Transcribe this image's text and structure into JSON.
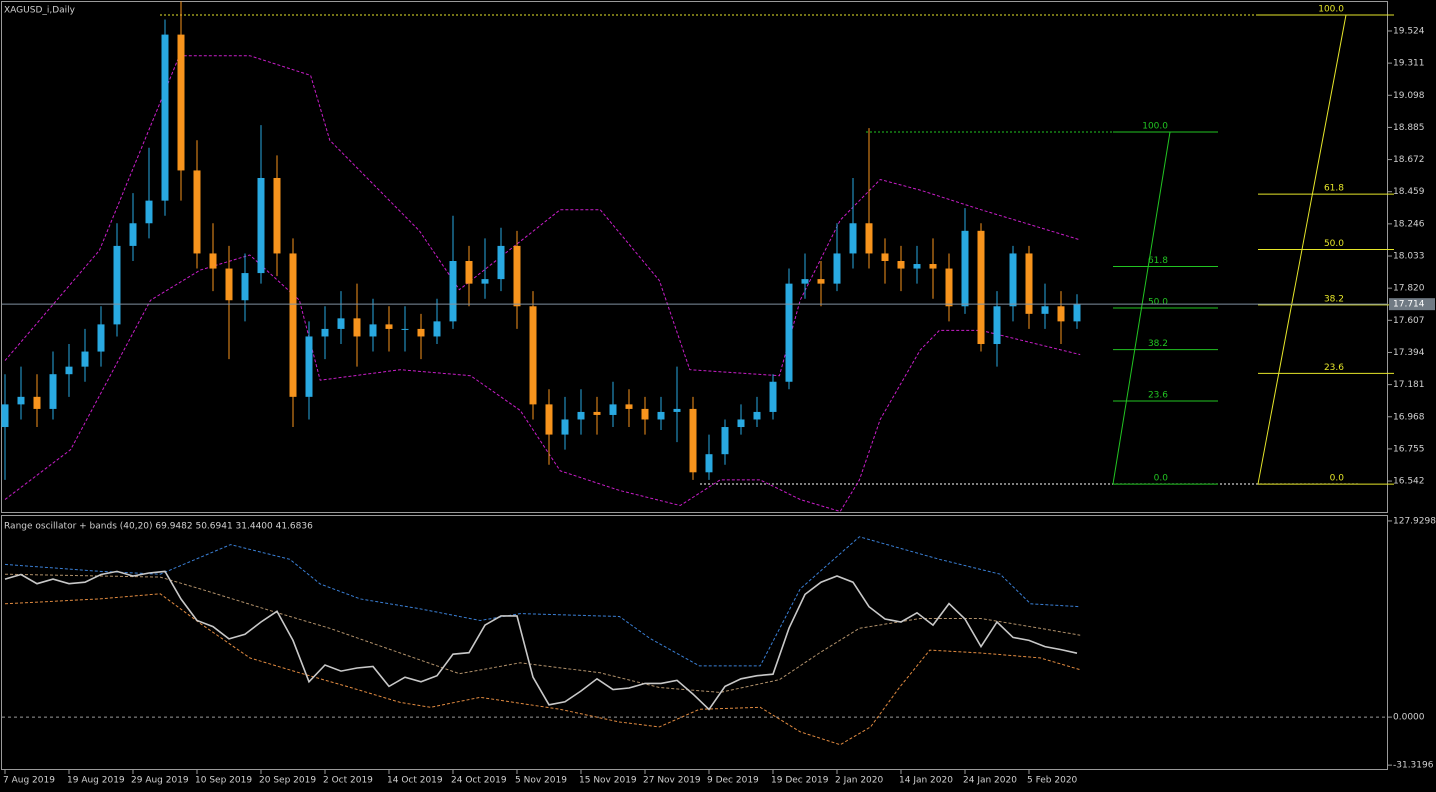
{
  "chart_data": [
    {
      "type": "candlestick",
      "title": "XAGUSD_i,Daily",
      "up_color": "#29a9e1",
      "down_color": "#f7941d",
      "open": [
        16.9,
        17.05,
        17.1,
        17.02,
        17.25,
        17.3,
        17.4,
        17.58,
        18.1,
        18.25,
        18.4,
        19.5,
        18.6,
        18.05,
        17.95,
        17.74,
        17.92,
        18.55,
        18.05,
        17.1,
        17.5,
        17.55,
        17.62,
        17.5,
        17.58,
        17.55,
        17.55,
        17.5,
        17.6,
        18.0,
        17.85,
        17.88,
        18.1,
        17.7,
        17.05,
        16.85,
        16.95,
        17.0,
        16.98,
        17.05,
        17.02,
        16.95,
        17.0,
        17.02,
        16.6,
        16.72,
        16.9,
        16.95,
        17.0,
        17.2,
        17.85,
        17.88,
        17.85,
        18.05,
        18.25,
        18.05,
        18.0,
        17.95,
        17.98,
        17.95,
        17.7,
        18.2,
        17.45,
        17.7,
        18.05,
        17.65,
        17.7,
        17.6
      ],
      "high": [
        17.25,
        17.3,
        17.25,
        17.4,
        17.45,
        17.55,
        17.7,
        18.25,
        18.45,
        18.75,
        19.6,
        19.72,
        18.8,
        18.25,
        18.1,
        18.05,
        18.9,
        18.7,
        18.15,
        17.6,
        17.7,
        17.8,
        17.85,
        17.75,
        17.7,
        17.7,
        17.65,
        17.75,
        18.3,
        18.1,
        18.15,
        18.22,
        18.2,
        17.8,
        17.15,
        17.1,
        17.15,
        17.1,
        17.2,
        17.15,
        17.1,
        17.1,
        17.3,
        17.1,
        16.85,
        16.95,
        17.05,
        17.1,
        17.25,
        17.95,
        18.05,
        18.0,
        18.25,
        18.55,
        18.88,
        18.15,
        18.1,
        18.1,
        18.15,
        18.05,
        18.35,
        18.25,
        17.8,
        18.1,
        18.1,
        17.85,
        17.8,
        17.78
      ],
      "low": [
        16.55,
        16.95,
        16.9,
        16.95,
        17.1,
        17.2,
        17.3,
        17.5,
        18.0,
        18.15,
        18.3,
        18.4,
        17.95,
        17.8,
        17.35,
        17.6,
        17.85,
        17.9,
        16.9,
        16.95,
        17.35,
        17.45,
        17.3,
        17.4,
        17.4,
        17.4,
        17.35,
        17.45,
        17.55,
        17.7,
        17.75,
        17.8,
        17.55,
        16.95,
        16.65,
        16.75,
        16.85,
        16.85,
        16.9,
        16.9,
        16.85,
        16.88,
        16.8,
        16.55,
        16.55,
        16.65,
        16.85,
        16.9,
        16.95,
        17.15,
        17.75,
        17.7,
        17.8,
        17.95,
        17.95,
        17.85,
        17.8,
        17.85,
        17.75,
        17.6,
        17.65,
        17.4,
        17.3,
        17.6,
        17.55,
        17.55,
        17.45,
        17.55
      ],
      "close": [
        17.05,
        17.1,
        17.02,
        17.25,
        17.3,
        17.4,
        17.58,
        18.1,
        18.25,
        18.4,
        19.5,
        18.6,
        18.05,
        17.95,
        17.74,
        17.92,
        18.55,
        18.05,
        17.1,
        17.5,
        17.55,
        17.62,
        17.5,
        17.58,
        17.55,
        17.55,
        17.5,
        17.6,
        18.0,
        17.85,
        17.88,
        18.1,
        17.7,
        17.05,
        16.85,
        16.95,
        17.0,
        16.98,
        17.05,
        17.02,
        16.95,
        17.0,
        17.02,
        16.6,
        16.72,
        16.9,
        16.95,
        17.0,
        17.2,
        17.85,
        17.88,
        17.85,
        18.05,
        18.25,
        18.05,
        18.0,
        17.95,
        17.98,
        17.95,
        17.7,
        18.2,
        17.45,
        17.7,
        18.05,
        17.65,
        17.7,
        17.6,
        17.714
      ],
      "last_price": 17.714,
      "ylim": [
        16.337,
        19.716
      ],
      "yticks": [
        19.524,
        19.311,
        19.098,
        18.885,
        18.672,
        18.459,
        18.246,
        18.033,
        {
          "value": 17.82,
          "label": "17.820"
        },
        17.607,
        17.394,
        17.181,
        16.968,
        16.755,
        16.542
      ],
      "overlays": [
        {
          "color": "#c81ec8",
          "x": [
            0,
            5.9,
            10.9,
            15.3,
            19.1,
            20.3,
            25.9,
            28.4,
            34.7,
            37.2,
            40.9,
            42.8,
            48.4,
            49.7,
            52.2,
            54.7,
            57.2,
            61.0,
            67.2
          ],
          "values": [
            17.34,
            18.07,
            19.36,
            19.36,
            19.23,
            18.8,
            18.2,
            17.81,
            18.34,
            18.34,
            17.87,
            17.28,
            17.24,
            17.74,
            18.27,
            18.54,
            18.47,
            18.34,
            18.14
          ]
        },
        {
          "color": "#c81ec8",
          "x": [
            0,
            4.1,
            9.1,
            12.2,
            15.3,
            18.4,
            19.7,
            24.7,
            29.1,
            32.2,
            34.7,
            38.4,
            42.2,
            44.7,
            47.2,
            49.7,
            52.2,
            53.4,
            54.7,
            57.2,
            58.4,
            61.0,
            67.2
          ],
          "values": [
            16.42,
            16.75,
            17.74,
            17.94,
            18.04,
            17.74,
            17.21,
            17.28,
            17.24,
            17.01,
            16.61,
            16.48,
            16.38,
            16.55,
            16.55,
            16.42,
            16.34,
            16.55,
            16.95,
            17.41,
            17.54,
            17.54,
            17.38
          ]
        }
      ],
      "fibs": [
        {
          "color": "#22c322",
          "high": 18.855,
          "low": 16.522,
          "levels": [
            {
              "value": 100,
              "label": "100.0"
            },
            61.8,
            {
              "value": 50,
              "label": "50.0"
            },
            38.2,
            23.6,
            {
              "value": 0,
              "label": "0.0"
            }
          ]
        },
        {
          "color": "#e6e62a",
          "high": 19.63,
          "low": 16.522,
          "levels": [
            {
              "value": 100,
              "label": "100.0"
            },
            61.8,
            {
              "value": 50,
              "label": "50.0"
            },
            38.2,
            23.6,
            {
              "value": 0,
              "label": "0.0"
            }
          ]
        }
      ]
    },
    {
      "type": "line",
      "title": "Range oscillator + bands (40,20) 69.9482 50.6941 31.4400 41.6836",
      "color": "#c8c8c8",
      "values": [
        90,
        93,
        87,
        90,
        87,
        88,
        93,
        95,
        92,
        94,
        95,
        77,
        63,
        59,
        51,
        54,
        62,
        69,
        50,
        23,
        34,
        30,
        32,
        33,
        20,
        26,
        23,
        27,
        41,
        42,
        60,
        66,
        66,
        26,
        8,
        10,
        17,
        25,
        18,
        19,
        22,
        22,
        24,
        15,
        5,
        20,
        25,
        27,
        28,
        58,
        80,
        88,
        92,
        88,
        72,
        64,
        62,
        68,
        60,
        74,
        64,
        46,
        62,
        52,
        50,
        46,
        44,
        41.68
      ],
      "ylim": [
        -34.5,
        131.8
      ],
      "yticks": [
        127.9298,
        {
          "value": 0,
          "label": "0.0000"
        },
        -31.3196
      ],
      "bands": [
        {
          "color": "#3a7fd5",
          "x": [
            0,
            5.9,
            9.7,
            14.1,
            17.8,
            19.7,
            22.2,
            25.9,
            29.7,
            32.2,
            38.4,
            40.3,
            43.4,
            47.2,
            49.7,
            53.4,
            58.4,
            62.2,
            64.1,
            67.2
          ],
          "values": [
            99.6,
            95.1,
            93.2,
            112.5,
            102.9,
            86.8,
            77.1,
            70.7,
            63.0,
            67.5,
            65.6,
            51.4,
            33.4,
            33.4,
            83.6,
            117.6,
            102.9,
            93.2,
            73.9,
            72.0
          ]
        },
        {
          "color": "#b0906a",
          "x": [
            0,
            9.7,
            12.2,
            16.6,
            20.3,
            24.7,
            28.4,
            32.2,
            37.2,
            40.9,
            44.7,
            48.4,
            50.9,
            53.4,
            57.2,
            61.0,
            64.7,
            67.2
          ],
          "values": [
            93.2,
            91.3,
            83.6,
            69.4,
            57.9,
            41.8,
            28.3,
            35.4,
            28.9,
            19.3,
            16.1,
            24.4,
            41.8,
            57.9,
            64.3,
            64.3,
            57.9,
            53.4
          ]
        },
        {
          "color": "#e08a40",
          "x": [
            0,
            5.9,
            9.7,
            12.2,
            15.3,
            18.4,
            21.6,
            24.7,
            26.6,
            29.7,
            34.7,
            38.4,
            40.9,
            43.4,
            47.2,
            49.7,
            52.2,
            54.1,
            55.9,
            57.8,
            61.0,
            64.7,
            67.2
          ],
          "values": [
            73.9,
            77.1,
            80.4,
            61.1,
            38.6,
            28.9,
            19.3,
            9.6,
            6.4,
            12.9,
            5.1,
            -3.2,
            -6.4,
            5.1,
            6.4,
            -9.6,
            -18.0,
            -6.4,
            19.3,
            43.7,
            41.8,
            38.6,
            30.9
          ]
        }
      ],
      "xticks": [
        {
          "value": 0,
          "label": "7 Aug 2019"
        },
        {
          "value": 4,
          "label": "19 Aug 2019"
        },
        {
          "value": 8,
          "label": "29 Aug 2019"
        },
        {
          "value": 12,
          "label": "10 Sep 2019"
        },
        {
          "value": 16,
          "label": "20 Sep 2019"
        },
        {
          "value": 20,
          "label": "2 Oct 2019"
        },
        {
          "value": 24,
          "label": "14 Oct 2019"
        },
        {
          "value": 28,
          "label": "24 Oct 2019"
        },
        {
          "value": 32,
          "label": "5 Nov 2019"
        },
        {
          "value": 36,
          "label": "15 Nov 2019"
        },
        {
          "value": 40,
          "label": "27 Nov 2019"
        },
        {
          "value": 44,
          "label": "9 Dec 2019"
        },
        {
          "value": 48,
          "label": "19 Dec 2019"
        },
        {
          "value": 52,
          "label": "2 Jan 2020"
        },
        {
          "value": 56,
          "label": "14 Jan 2020"
        },
        {
          "value": 60,
          "label": "24 Jan 2020"
        },
        {
          "value": 64,
          "label": "5 Feb 2020"
        }
      ]
    }
  ]
}
